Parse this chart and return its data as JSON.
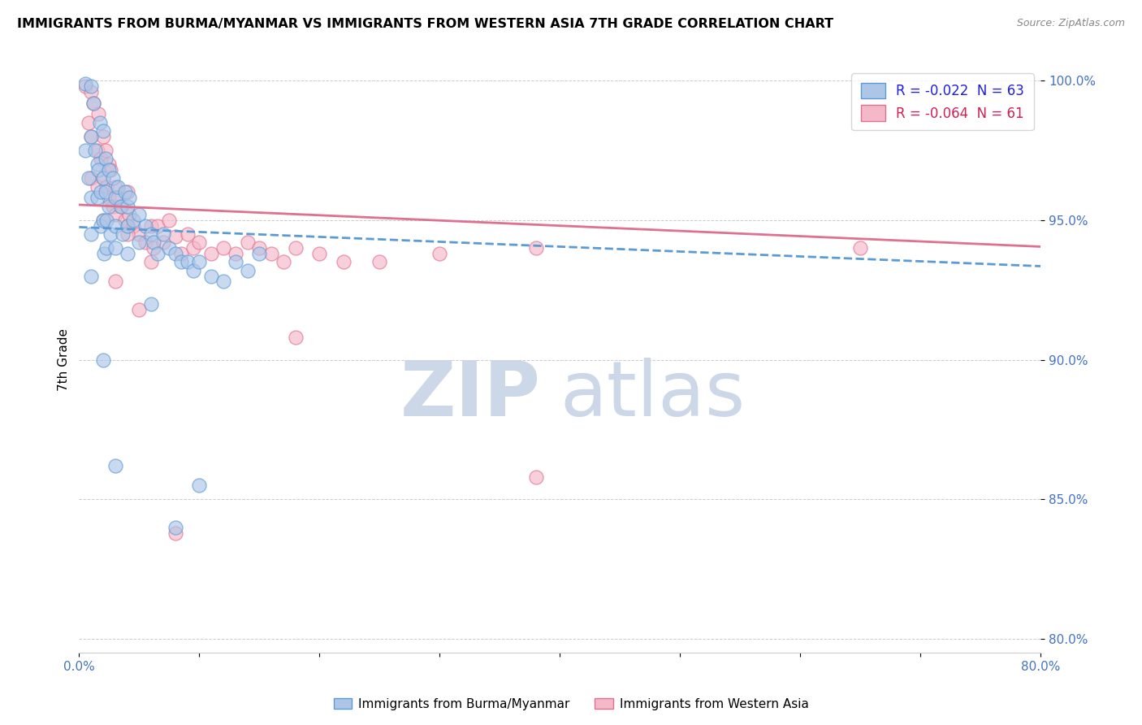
{
  "title": "IMMIGRANTS FROM BURMA/MYANMAR VS IMMIGRANTS FROM WESTERN ASIA 7TH GRADE CORRELATION CHART",
  "source": "Source: ZipAtlas.com",
  "ylabel": "7th Grade",
  "xlim": [
    0.0,
    0.8
  ],
  "ylim": [
    0.795,
    1.005
  ],
  "xticks": [
    0.0,
    0.1,
    0.2,
    0.3,
    0.4,
    0.5,
    0.6,
    0.7,
    0.8
  ],
  "yticks": [
    0.8,
    0.85,
    0.9,
    0.95,
    1.0
  ],
  "yticklabels": [
    "80.0%",
    "85.0%",
    "90.0%",
    "95.0%",
    "100.0%"
  ],
  "blue_color": "#adc6e8",
  "pink_color": "#f5b8c8",
  "blue_edge_color": "#5b9bd5",
  "pink_edge_color": "#e07090",
  "blue_line_color": "#5b9bd5",
  "pink_line_color": "#e07090",
  "legend_blue_label": "R = -0.022  N = 63",
  "legend_pink_label": "R = -0.064  N = 61",
  "legend_blue_text_color": "#2020dd",
  "legend_pink_text_color": "#cc2255",
  "watermark_zip": "ZIP",
  "watermark_atlas": "atlas",
  "watermark_color": "#ccd8e8",
  "blue_scatter_x": [
    0.005,
    0.005,
    0.008,
    0.01,
    0.01,
    0.01,
    0.01,
    0.01,
    0.012,
    0.013,
    0.015,
    0.015,
    0.016,
    0.017,
    0.018,
    0.018,
    0.02,
    0.02,
    0.02,
    0.021,
    0.022,
    0.022,
    0.023,
    0.023,
    0.025,
    0.025,
    0.026,
    0.028,
    0.03,
    0.03,
    0.03,
    0.032,
    0.035,
    0.036,
    0.038,
    0.04,
    0.04,
    0.04,
    0.042,
    0.045,
    0.05,
    0.05,
    0.055,
    0.06,
    0.062,
    0.065,
    0.07,
    0.075,
    0.08,
    0.085,
    0.09,
    0.095,
    0.1,
    0.11,
    0.12,
    0.13,
    0.14,
    0.15,
    0.02,
    0.03,
    0.06,
    0.08,
    0.1
  ],
  "blue_scatter_y": [
    0.999,
    0.975,
    0.965,
    0.998,
    0.98,
    0.958,
    0.945,
    0.93,
    0.992,
    0.975,
    0.97,
    0.958,
    0.968,
    0.985,
    0.96,
    0.948,
    0.982,
    0.965,
    0.95,
    0.938,
    0.972,
    0.96,
    0.95,
    0.94,
    0.968,
    0.955,
    0.945,
    0.965,
    0.958,
    0.948,
    0.94,
    0.962,
    0.955,
    0.945,
    0.96,
    0.955,
    0.948,
    0.938,
    0.958,
    0.95,
    0.952,
    0.942,
    0.948,
    0.945,
    0.942,
    0.938,
    0.945,
    0.94,
    0.938,
    0.935,
    0.935,
    0.932,
    0.935,
    0.93,
    0.928,
    0.935,
    0.932,
    0.938,
    0.9,
    0.862,
    0.92,
    0.84,
    0.855
  ],
  "pink_scatter_x": [
    0.005,
    0.008,
    0.01,
    0.01,
    0.01,
    0.012,
    0.015,
    0.015,
    0.016,
    0.018,
    0.02,
    0.02,
    0.02,
    0.022,
    0.023,
    0.025,
    0.025,
    0.026,
    0.028,
    0.03,
    0.03,
    0.032,
    0.035,
    0.038,
    0.04,
    0.04,
    0.042,
    0.045,
    0.05,
    0.055,
    0.06,
    0.062,
    0.065,
    0.07,
    0.075,
    0.08,
    0.085,
    0.09,
    0.095,
    0.1,
    0.11,
    0.12,
    0.13,
    0.14,
    0.15,
    0.16,
    0.17,
    0.18,
    0.2,
    0.22,
    0.25,
    0.3,
    0.38,
    0.65,
    0.03,
    0.05,
    0.08,
    0.18,
    0.38,
    0.04,
    0.06
  ],
  "pink_scatter_y": [
    0.998,
    0.985,
    0.996,
    0.98,
    0.965,
    0.992,
    0.975,
    0.962,
    0.988,
    0.972,
    0.98,
    0.965,
    0.95,
    0.975,
    0.962,
    0.97,
    0.958,
    0.968,
    0.955,
    0.962,
    0.952,
    0.958,
    0.955,
    0.95,
    0.96,
    0.948,
    0.952,
    0.948,
    0.945,
    0.942,
    0.948,
    0.94,
    0.948,
    0.942,
    0.95,
    0.944,
    0.938,
    0.945,
    0.94,
    0.942,
    0.938,
    0.94,
    0.938,
    0.942,
    0.94,
    0.938,
    0.935,
    0.94,
    0.938,
    0.935,
    0.935,
    0.938,
    0.94,
    0.94,
    0.928,
    0.918,
    0.838,
    0.908,
    0.858,
    0.945,
    0.935
  ],
  "blue_trend_x": [
    0.0,
    0.8
  ],
  "blue_trend_y": [
    0.9475,
    0.9335
  ],
  "pink_trend_x": [
    0.0,
    0.8
  ],
  "pink_trend_y": [
    0.9555,
    0.9405
  ],
  "bg_color": "#ffffff",
  "grid_color": "#cccccc",
  "bottom_legend_blue": "Immigrants from Burma/Myanmar",
  "bottom_legend_pink": "Immigrants from Western Asia"
}
